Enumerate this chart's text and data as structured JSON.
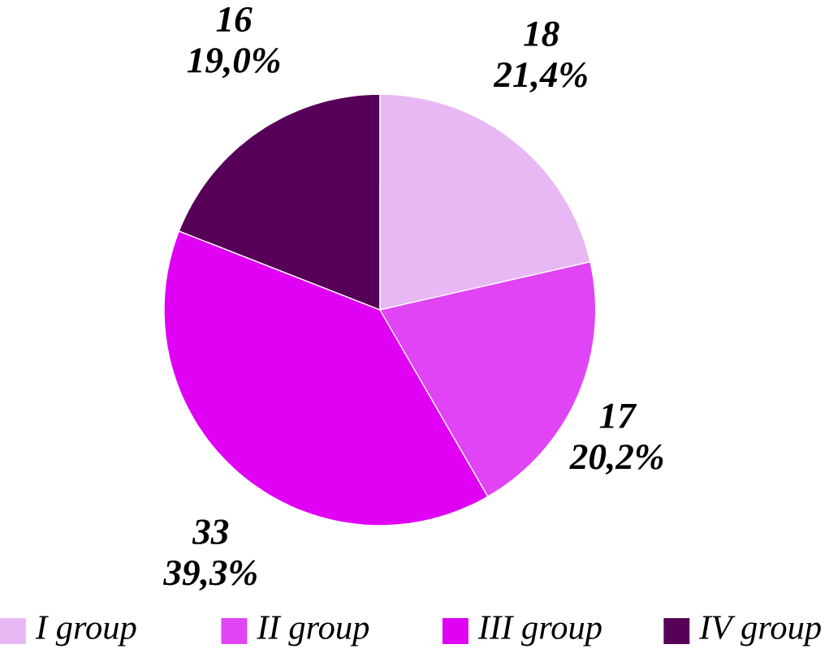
{
  "chart_data": {
    "type": "pie",
    "categories": [
      "I group",
      "II group",
      "III group",
      "IV group"
    ],
    "values": [
      18,
      17,
      33,
      16
    ],
    "colors": [
      "#e8b8f4",
      "#e044f4",
      "#e000f4",
      "#560058"
    ],
    "value_labels": [
      "18 21,4%",
      "17 20,2%",
      "33 39,3%",
      "16 19,0%"
    ],
    "legend": "bottom"
  }
}
